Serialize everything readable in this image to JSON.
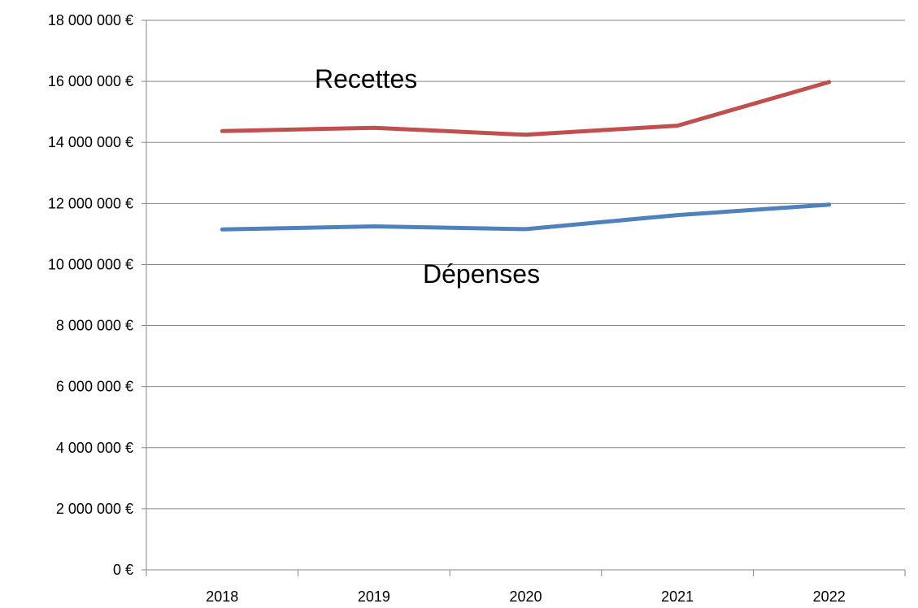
{
  "chart_data": {
    "type": "line",
    "categories": [
      "2018",
      "2019",
      "2020",
      "2021",
      "2022"
    ],
    "series": [
      {
        "name": "Recettes",
        "values": [
          14370000,
          14480000,
          14250000,
          14550000,
          15980000
        ],
        "color": "#c0504d"
      },
      {
        "name": "Dépenses",
        "values": [
          11150000,
          11250000,
          11160000,
          11620000,
          11960000
        ],
        "color": "#4f81bd"
      }
    ],
    "ylim": [
      0,
      18000000
    ],
    "yticks": [
      "0 €",
      "2 000 000 €",
      "4 000 000 €",
      "6 000 000 €",
      "8 000 000 €",
      "10 000 000 €",
      "12 000 000 €",
      "14 000 000 €",
      "16 000 000 €",
      "18 000 000 €"
    ],
    "annotations": [
      {
        "series": "Recettes",
        "text": "Recettes"
      },
      {
        "series": "Dépenses",
        "text": "Dépenses"
      }
    ],
    "grid": true,
    "legend": "none",
    "title": "",
    "xlabel": "",
    "ylabel": ""
  }
}
